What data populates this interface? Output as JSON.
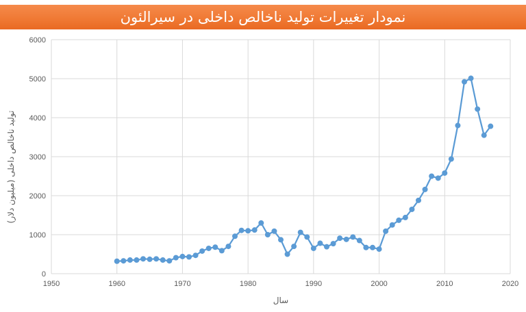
{
  "header": {
    "title": "نمودار تغییرات تولید ناخالص داخلی در سیرالئون"
  },
  "colors": {
    "title_bar": "#f07a35",
    "series": "#5b9bd5",
    "grid": "#d9d9d9",
    "text": "#595959"
  },
  "chart_data": {
    "type": "line",
    "title": "نمودار تغییرات تولید ناخالص داخلی در سیرالئون",
    "xlabel": "سال",
    "ylabel": "تولید ناخالص داخلی (میلیون دلار)",
    "xlim": [
      1950,
      2020
    ],
    "ylim": [
      0,
      6000
    ],
    "xticks": [
      1950,
      1960,
      1970,
      1980,
      1990,
      2000,
      2010,
      2020
    ],
    "yticks": [
      0,
      1000,
      2000,
      3000,
      4000,
      5000,
      6000
    ],
    "grid": true,
    "markers": true,
    "series": [
      {
        "x": [
          1960,
          1961,
          1962,
          1963,
          1964,
          1965,
          1966,
          1967,
          1968,
          1969,
          1970,
          1971,
          1972,
          1973,
          1974,
          1975,
          1976,
          1977,
          1978,
          1979,
          1980,
          1981,
          1982,
          1983,
          1984,
          1985,
          1986,
          1987,
          1988,
          1989,
          1990,
          1991,
          1992,
          1993,
          1994,
          1995,
          1996,
          1997,
          1998,
          1999,
          2000,
          2001,
          2002,
          2003,
          2004,
          2005,
          2006,
          2007,
          2008,
          2009,
          2010,
          2011,
          2012,
          2013,
          2014,
          2015,
          2016,
          2017
        ],
        "y": [
          320,
          330,
          350,
          350,
          380,
          370,
          380,
          350,
          330,
          410,
          440,
          430,
          470,
          580,
          650,
          680,
          590,
          700,
          960,
          1110,
          1100,
          1120,
          1300,
          1000,
          1090,
          870,
          500,
          700,
          1060,
          940,
          650,
          780,
          690,
          770,
          910,
          880,
          940,
          850,
          670,
          670,
          630,
          1090,
          1250,
          1370,
          1440,
          1650,
          1880,
          2160,
          2500,
          2450,
          2580,
          2940,
          3800,
          4920,
          5010,
          4220,
          3550,
          3780
        ]
      }
    ]
  }
}
